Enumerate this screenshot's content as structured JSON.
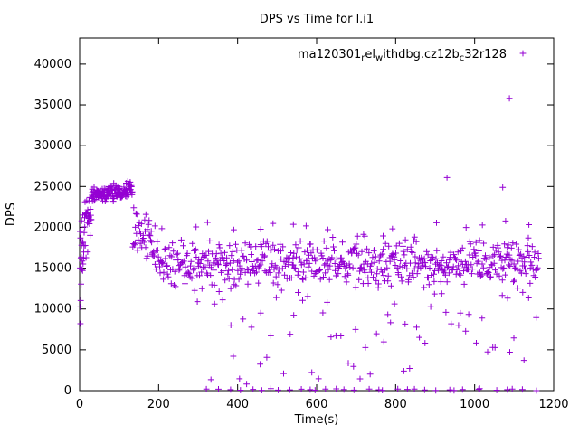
{
  "chart_data": {
    "type": "scatter",
    "title": "DPS vs Time for l.i1",
    "xlabel": "Time(s)",
    "ylabel": "DPS",
    "xlim": [
      0,
      1200
    ],
    "ylim": [
      0,
      43200
    ],
    "xticks": [
      0,
      200,
      400,
      600,
      800,
      1000,
      1200
    ],
    "yticks": [
      0,
      5000,
      10000,
      15000,
      20000,
      25000,
      30000,
      35000,
      40000
    ],
    "grid": false,
    "marker": "plus",
    "series_color": "#9400d3",
    "axis_color": "#000000",
    "legend": {
      "position": "top-right-inside",
      "label_plain": "ma120301_rel_withdbg.cz12b_c32r128",
      "rendered_segments": [
        {
          "t": "ma120301",
          "sub": false
        },
        {
          "t": "r",
          "sub": true
        },
        {
          "t": "el",
          "sub": false
        },
        {
          "t": "w",
          "sub": true
        },
        {
          "t": "ithdbg.cz12b",
          "sub": false
        },
        {
          "t": "c",
          "sub": true
        },
        {
          "t": "32r128",
          "sub": false
        }
      ]
    },
    "seed": 1234,
    "series_summary": "DPS ramps from ~8000-19500 at t=0 up to a ~24000-25500 plateau for t=30-135s, declines to a noisy steady band centered ~15500 (13000-18500) through t=1165s, with recurring low-throughput dips scattered between 0 and 12500 after t~300s and occasional points at 0.",
    "generated_segments": [
      {
        "type": "ramp",
        "t0": 1,
        "t1": 30,
        "n": 42,
        "y0": 9500,
        "y1": 23200,
        "pow": 0.45,
        "noise": 2200,
        "clamp": [
          8000,
          23800
        ]
      },
      {
        "type": "flat",
        "t0": 30,
        "t1": 134,
        "n": 135,
        "base": 23900,
        "drift": 900,
        "noise": 480,
        "clamp": [
          22800,
          25600
        ]
      },
      {
        "type": "ramp",
        "t0": 134,
        "t1": 195,
        "n": 45,
        "y0": 20800,
        "y1": 16600,
        "pow": 1,
        "noise": 1500,
        "clamp": [
          13500,
          22400
        ]
      },
      {
        "type": "flat",
        "t0": 195,
        "t1": 1163,
        "n": 600,
        "base": 15550,
        "drift": 0,
        "noise": 1350,
        "clamp": [
          12000,
          21300
        ]
      },
      {
        "type": "uniform",
        "t0": 283,
        "t1": 1160,
        "n": 70,
        "ymin": 800,
        "ymax": 12500
      },
      {
        "type": "uniform",
        "t0": 320,
        "t1": 1160,
        "n": 34,
        "ymin": 0,
        "ymax": 260
      },
      {
        "type": "uniform",
        "t0": 200,
        "t1": 1160,
        "n": 18,
        "ymin": 18800,
        "ymax": 21000
      }
    ],
    "outlier_points": [
      [
        1,
        19500
      ],
      [
        2,
        18700
      ],
      [
        3,
        16200
      ],
      [
        2,
        8200
      ],
      [
        5,
        20800
      ],
      [
        8,
        21500
      ],
      [
        122,
        25650
      ],
      [
        930,
        26100
      ],
      [
        1071,
        24900
      ],
      [
        1088,
        35800
      ]
    ]
  }
}
